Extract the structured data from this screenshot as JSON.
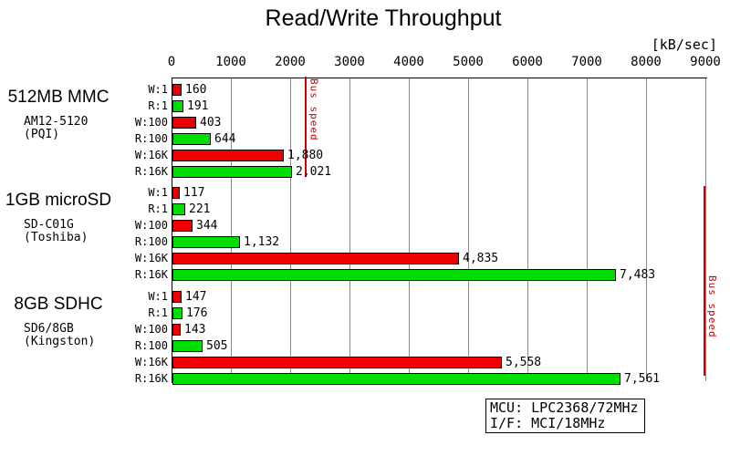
{
  "title": "Read/Write Throughput",
  "unit_label": "[kB/sec]",
  "colors": {
    "write_bar": "#ee0000",
    "read_bar": "#00dd00",
    "gridline": "#8a8a8a",
    "bus_line": "#cc0000",
    "bus_text": "#cc0000"
  },
  "info_box": {
    "lines": [
      "MCU: LPC2368/72MHz",
      "I/F: MCI/18MHz"
    ]
  },
  "chart_data": {
    "type": "bar",
    "orientation": "horizontal",
    "title": "Read/Write Throughput",
    "unit": "kB/sec",
    "xlim": [
      0,
      9000
    ],
    "grid": true,
    "legend": false,
    "tick_labels": [
      "0",
      "1000",
      "2000",
      "3000",
      "4000",
      "5000",
      "6000",
      "7000",
      "8000",
      "9000"
    ],
    "row_labels": [
      "W:1",
      "R:1",
      "W:100",
      "R:100",
      "W:16K",
      "R:16K"
    ],
    "row_kinds": [
      "write",
      "read",
      "write",
      "read",
      "write",
      "read"
    ],
    "groups": [
      {
        "name": "512MB MMC",
        "model": "AM12-5120",
        "maker": "(PQI)",
        "values": [
          160,
          191,
          403,
          644,
          1880,
          2021
        ],
        "value_labels": [
          "160",
          "191",
          "403",
          "644",
          "1,880",
          "2,021"
        ]
      },
      {
        "name": "1GB microSD",
        "model": "SD-C01G",
        "maker": "(Toshiba)",
        "values": [
          117,
          221,
          344,
          1132,
          4835,
          7483
        ],
        "value_labels": [
          "117",
          "221",
          "344",
          "1,132",
          "4,835",
          "7,483"
        ]
      },
      {
        "name": "8GB SDHC",
        "model": "SD6/8GB",
        "maker": "(Kingston)",
        "values": [
          147,
          176,
          143,
          505,
          5558,
          7561
        ],
        "value_labels": [
          "147",
          "176",
          "143",
          "505",
          "5,558",
          "7,561"
        ]
      }
    ],
    "annotations": [
      {
        "label": "Bus speed",
        "value": 2250,
        "applies_to_group": 0
      },
      {
        "label": "Bus speed",
        "value": 8970,
        "applies_to_group": "1-2"
      }
    ]
  }
}
